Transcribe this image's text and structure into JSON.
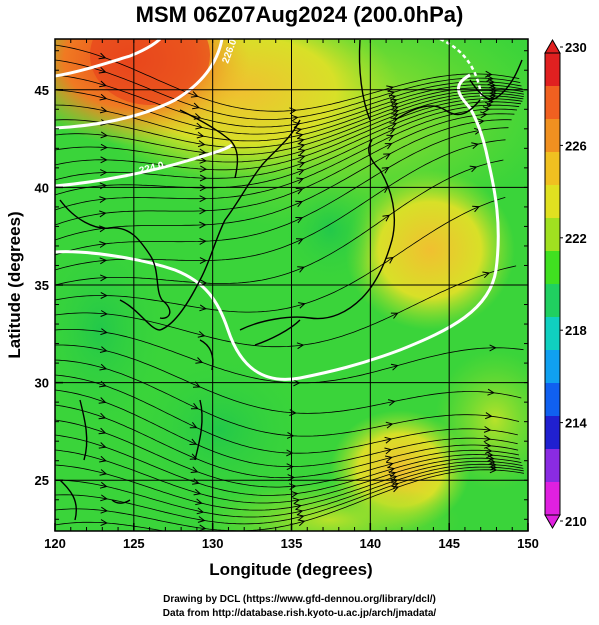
{
  "title": "MSM 06Z07Aug2024 (200.0hPa)",
  "axes": {
    "xlabel": "Longitude (degrees)",
    "ylabel": "Latitude  (degrees)",
    "x_ticks": [
      "120",
      "125",
      "130",
      "135",
      "140",
      "145",
      "150"
    ],
    "y_ticks": [
      "25",
      "30",
      "35",
      "40",
      "45"
    ],
    "xlim": [
      120,
      150
    ],
    "ylim": [
      22.4,
      47.6
    ]
  },
  "colorbar": {
    "ticks": [
      "230",
      "226",
      "222",
      "218",
      "214",
      "210"
    ],
    "range": [
      210,
      230
    ],
    "colors": [
      "#e020e0",
      "#8a2be2",
      "#2020d0",
      "#1060f0",
      "#10a0f0",
      "#10d0c0",
      "#20d060",
      "#40e020",
      "#a0e020",
      "#e0e020",
      "#f0c020",
      "#f09020",
      "#f06020",
      "#e02020"
    ]
  },
  "field_colors": {
    "green": "#3ad43a",
    "yellow_green": "#9ee22a",
    "yellow": "#e6e628",
    "orange": "#f0a028",
    "red": "#e84a1e"
  },
  "contour_labels": [
    "224.0",
    "226.0"
  ],
  "credits": {
    "line1": "Drawing by DCL (https://www.gfd-dennou.org/library/dcl/)",
    "line2": "Data from http://database.rish.kyoto-u.ac.jp/arch/jmadata/"
  }
}
